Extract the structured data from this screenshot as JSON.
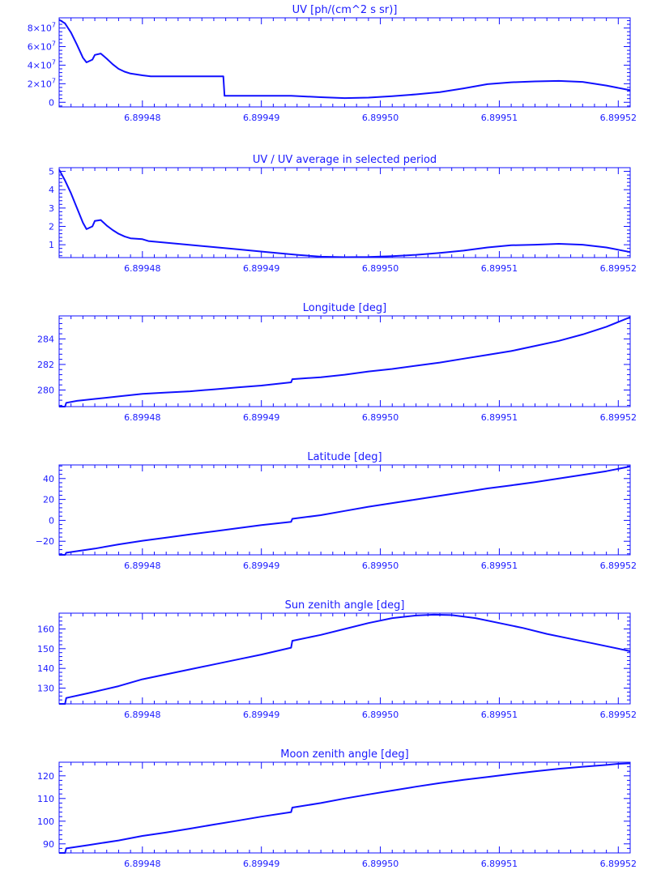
{
  "chart_data": [
    {
      "type": "line",
      "title": "UV [ph/(cm^2 s sr)]",
      "xlim": [
        6.899473,
        6.899521
      ],
      "x_ticks": [
        "6.89948",
        "6.89949",
        "6.89950",
        "6.89951",
        "6.89952"
      ],
      "ylim": [
        -5000000,
        91000000
      ],
      "y_ticks": [
        {
          "value": 0,
          "label": "0"
        },
        {
          "value": 20000000,
          "label": "2×10",
          "exp": "7"
        },
        {
          "value": 40000000,
          "label": "4×10",
          "exp": "7"
        },
        {
          "value": 60000000,
          "label": "6×10",
          "exp": "7"
        },
        {
          "value": 80000000,
          "label": "8×10",
          "exp": "7"
        }
      ],
      "series": [
        {
          "x": [
            6.899473,
            6.8994735,
            6.899474,
            6.8994745,
            6.899475,
            6.8994753,
            6.8994758,
            6.899476,
            6.8994765,
            6.899477,
            6.8994775,
            6.899478,
            6.8994785,
            6.899479,
            6.89948,
            6.8994807,
            6.8994868,
            6.8994869,
            6.89949,
            6.8994925,
            6.899495,
            6.899497,
            6.899499,
            6.899501,
            6.899503,
            6.899505,
            6.899507,
            6.899509,
            6.899511,
            6.899513,
            6.899515,
            6.899517,
            6.899519,
            6.899521
          ],
          "y": [
            89000000,
            85000000,
            75000000,
            62000000,
            48000000,
            43000000,
            46000000,
            51000000,
            52500000,
            47000000,
            41000000,
            36000000,
            33000000,
            31000000,
            29000000,
            28000000,
            28000000,
            7000000,
            7000000,
            7000000,
            5500000,
            4500000,
            5000000,
            6500000,
            8500000,
            11000000,
            15000000,
            19500000,
            21500000,
            22500000,
            23000000,
            22000000,
            18000000,
            13000000
          ]
        }
      ]
    },
    {
      "type": "line",
      "title": "UV / UV average in selected period",
      "xlim": [
        6.899473,
        6.899521
      ],
      "x_ticks": [
        "6.89948",
        "6.89949",
        "6.89950",
        "6.89951",
        "6.89952"
      ],
      "ylim": [
        0.3,
        5.2
      ],
      "y_ticks": [
        {
          "value": 1,
          "label": "1"
        },
        {
          "value": 2,
          "label": "2"
        },
        {
          "value": 3,
          "label": "3"
        },
        {
          "value": 4,
          "label": "4"
        },
        {
          "value": 5,
          "label": "5"
        }
      ],
      "series": [
        {
          "x": [
            6.899473,
            6.8994735,
            6.899474,
            6.8994745,
            6.899475,
            6.8994753,
            6.8994758,
            6.899476,
            6.8994765,
            6.899477,
            6.8994775,
            6.899478,
            6.8994785,
            6.899479,
            6.89948,
            6.8994805,
            6.899483,
            6.8994855,
            6.899488,
            6.8994905,
            6.899493,
            6.899495,
            6.899497,
            6.899499,
            6.899501,
            6.899503,
            6.899505,
            6.899507,
            6.899509,
            6.899511,
            6.899513,
            6.899515,
            6.899517,
            6.899519,
            6.899521
          ],
          "y": [
            5.1,
            4.5,
            3.8,
            3.0,
            2.2,
            1.85,
            2.0,
            2.3,
            2.35,
            2.05,
            1.8,
            1.6,
            1.45,
            1.35,
            1.3,
            1.2,
            1.05,
            0.9,
            0.75,
            0.6,
            0.45,
            0.35,
            0.32,
            0.33,
            0.38,
            0.45,
            0.55,
            0.68,
            0.85,
            0.97,
            1.0,
            1.05,
            1.0,
            0.85,
            0.6
          ]
        }
      ]
    },
    {
      "type": "line",
      "title": "Longitude [deg]",
      "xlim": [
        6.899473,
        6.899521
      ],
      "x_ticks": [
        "6.89948",
        "6.89949",
        "6.89950",
        "6.89951",
        "6.89952"
      ],
      "ylim": [
        278.7,
        285.8
      ],
      "y_ticks": [
        {
          "value": 280,
          "label": "280"
        },
        {
          "value": 282,
          "label": "282"
        },
        {
          "value": 284,
          "label": "284"
        }
      ],
      "series": [
        {
          "x": [
            6.899473,
            6.8994735,
            6.8994736,
            6.8994745,
            6.899476,
            6.899478,
            6.89948,
            6.899482,
            6.899484,
            6.899486,
            6.899488,
            6.89949,
            6.8994925,
            6.8994926,
            6.899495,
            6.899497,
            6.899499,
            6.899501,
            6.899503,
            6.899505,
            6.899507,
            6.899509,
            6.899511,
            6.899513,
            6.899515,
            6.899517,
            6.899519,
            6.899521
          ],
          "y": [
            278.7,
            278.7,
            279.0,
            279.15,
            279.3,
            279.5,
            279.7,
            279.8,
            279.9,
            280.05,
            280.2,
            280.35,
            280.6,
            280.85,
            281.0,
            281.2,
            281.45,
            281.65,
            281.9,
            282.15,
            282.45,
            282.75,
            283.05,
            283.45,
            283.85,
            284.35,
            284.95,
            285.7
          ]
        }
      ]
    },
    {
      "type": "line",
      "title": "Latitude [deg]",
      "xlim": [
        6.899473,
        6.899521
      ],
      "x_ticks": [
        "6.89948",
        "6.89949",
        "6.89950",
        "6.89951",
        "6.89952"
      ],
      "ylim": [
        -33,
        53
      ],
      "y_ticks": [
        {
          "value": -20,
          "label": "−20"
        },
        {
          "value": 0,
          "label": "0"
        },
        {
          "value": 20,
          "label": "20"
        },
        {
          "value": 40,
          "label": "40"
        }
      ],
      "series": [
        {
          "x": [
            6.899473,
            6.8994735,
            6.8994736,
            6.899476,
            6.899478,
            6.89948,
            6.899482,
            6.899484,
            6.899486,
            6.899488,
            6.89949,
            6.8994925,
            6.8994926,
            6.899495,
            6.899497,
            6.899499,
            6.899501,
            6.899503,
            6.899505,
            6.899507,
            6.899509,
            6.899511,
            6.899513,
            6.899515,
            6.899517,
            6.899519,
            6.899521
          ],
          "y": [
            -33,
            -33,
            -31,
            -27,
            -23,
            -19.5,
            -16.5,
            -13.5,
            -10.5,
            -7.5,
            -4.5,
            -1.5,
            1.5,
            5,
            9,
            13,
            16.5,
            20,
            23.5,
            27,
            30.5,
            33.5,
            36.5,
            40,
            43.5,
            47,
            51.5
          ]
        }
      ]
    },
    {
      "type": "line",
      "title": "Sun zenith angle [deg]",
      "xlim": [
        6.899473,
        6.899521
      ],
      "x_ticks": [
        "6.89948",
        "6.89949",
        "6.89950",
        "6.89951",
        "6.89952"
      ],
      "ylim": [
        122,
        168
      ],
      "y_ticks": [
        {
          "value": 130,
          "label": "130"
        },
        {
          "value": 140,
          "label": "140"
        },
        {
          "value": 150,
          "label": "150"
        },
        {
          "value": 160,
          "label": "160"
        }
      ],
      "series": [
        {
          "x": [
            6.899473,
            6.8994735,
            6.8994736,
            6.8994755,
            6.899478,
            6.89948,
            6.899482,
            6.899484,
            6.899486,
            6.899488,
            6.89949,
            6.8994925,
            6.8994926,
            6.899495,
            6.899497,
            6.899499,
            6.899501,
            6.899503,
            6.8995045,
            6.899506,
            6.899508,
            6.89951,
            6.899512,
            6.899514,
            6.899516,
            6.899518,
            6.89952,
            6.899521
          ],
          "y": [
            122,
            122,
            125,
            127.5,
            131,
            134.5,
            137,
            139.5,
            142,
            144.5,
            147,
            150.5,
            154,
            157,
            160,
            163,
            165.5,
            166.8,
            167.2,
            167,
            165.5,
            163,
            160.5,
            157.5,
            155,
            152.5,
            150,
            148.7
          ]
        }
      ]
    },
    {
      "type": "line",
      "title": "Moon zenith angle [deg]",
      "xlim": [
        6.899473,
        6.899521
      ],
      "x_ticks": [
        "6.89948",
        "6.89949",
        "6.89950",
        "6.89951",
        "6.89952"
      ],
      "ylim": [
        86,
        126
      ],
      "y_ticks": [
        {
          "value": 90,
          "label": "90"
        },
        {
          "value": 100,
          "label": "100"
        },
        {
          "value": 110,
          "label": "110"
        },
        {
          "value": 120,
          "label": "120"
        }
      ],
      "series": [
        {
          "x": [
            6.899473,
            6.8994735,
            6.8994736,
            6.8994755,
            6.899478,
            6.89948,
            6.899482,
            6.899484,
            6.899486,
            6.899488,
            6.89949,
            6.8994925,
            6.8994926,
            6.899495,
            6.899497,
            6.899499,
            6.899501,
            6.899503,
            6.899505,
            6.899507,
            6.899509,
            6.899511,
            6.899513,
            6.899515,
            6.899517,
            6.899519,
            6.89952,
            6.899521
          ],
          "y": [
            86,
            86,
            88,
            89.5,
            91.5,
            93.5,
            95,
            96.7,
            98.5,
            100.2,
            102,
            104,
            106,
            108,
            110,
            111.8,
            113.5,
            115.2,
            116.8,
            118.2,
            119.5,
            120.8,
            122,
            123.1,
            124,
            124.8,
            125.3,
            125.5
          ]
        }
      ]
    }
  ],
  "colors": {
    "line": "#1010ff",
    "text": "#1a1aff",
    "background": "#ffffff"
  }
}
